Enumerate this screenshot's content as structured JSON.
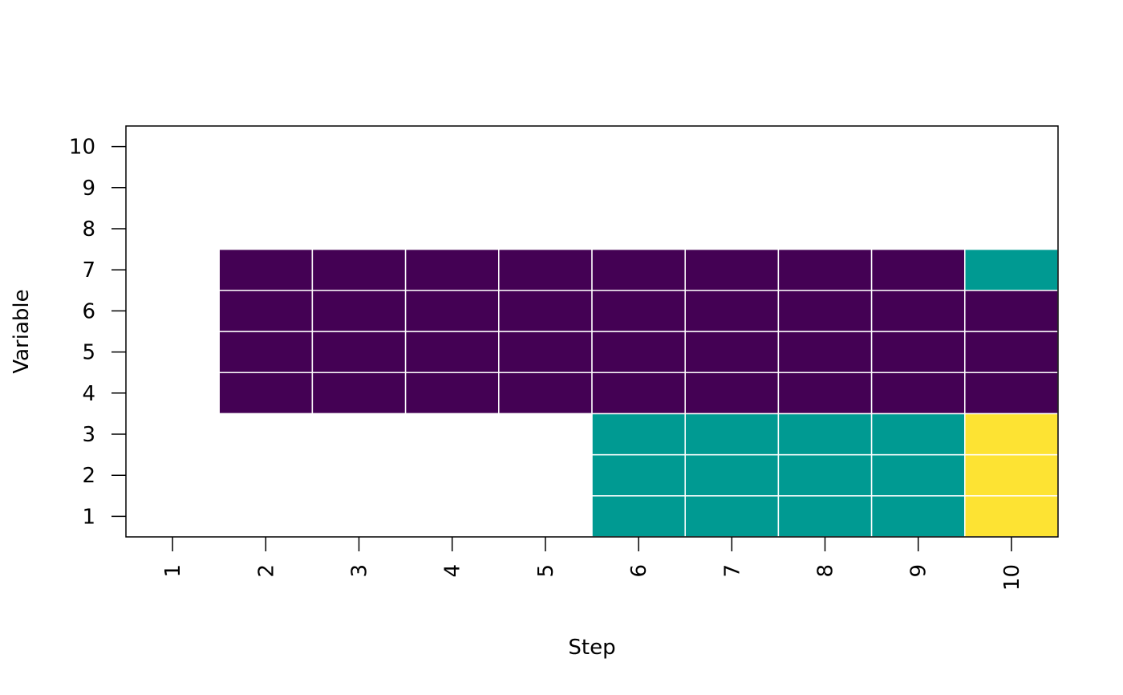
{
  "chart_data": {
    "type": "heatmap",
    "title": "",
    "xlabel": "Step",
    "ylabel": "Variable",
    "x": [
      "1",
      "2",
      "3",
      "4",
      "5",
      "6",
      "7",
      "8",
      "9",
      "10"
    ],
    "y": [
      "1",
      "2",
      "3",
      "4",
      "5",
      "6",
      "7",
      "8",
      "9",
      "10"
    ],
    "palette": {
      "1": "#440154",
      "2": "#009A92",
      "3": "#FDE333"
    },
    "cell_border_color": "#ffffff",
    "matrix": [
      [
        null,
        null,
        null,
        null,
        null,
        2,
        2,
        2,
        2,
        3
      ],
      [
        null,
        null,
        null,
        null,
        null,
        2,
        2,
        2,
        2,
        3
      ],
      [
        null,
        null,
        null,
        null,
        null,
        2,
        2,
        2,
        2,
        3
      ],
      [
        null,
        1,
        1,
        1,
        1,
        1,
        1,
        1,
        1,
        1
      ],
      [
        null,
        1,
        1,
        1,
        1,
        1,
        1,
        1,
        1,
        1
      ],
      [
        null,
        1,
        1,
        1,
        1,
        1,
        1,
        1,
        1,
        1
      ],
      [
        null,
        1,
        1,
        1,
        1,
        1,
        1,
        1,
        1,
        2
      ],
      [
        null,
        null,
        null,
        null,
        null,
        null,
        null,
        null,
        null,
        null
      ],
      [
        null,
        null,
        null,
        null,
        null,
        null,
        null,
        null,
        null,
        null
      ],
      [
        null,
        null,
        null,
        null,
        null,
        null,
        null,
        null,
        null,
        null
      ]
    ],
    "grid": false,
    "legend": "none"
  }
}
